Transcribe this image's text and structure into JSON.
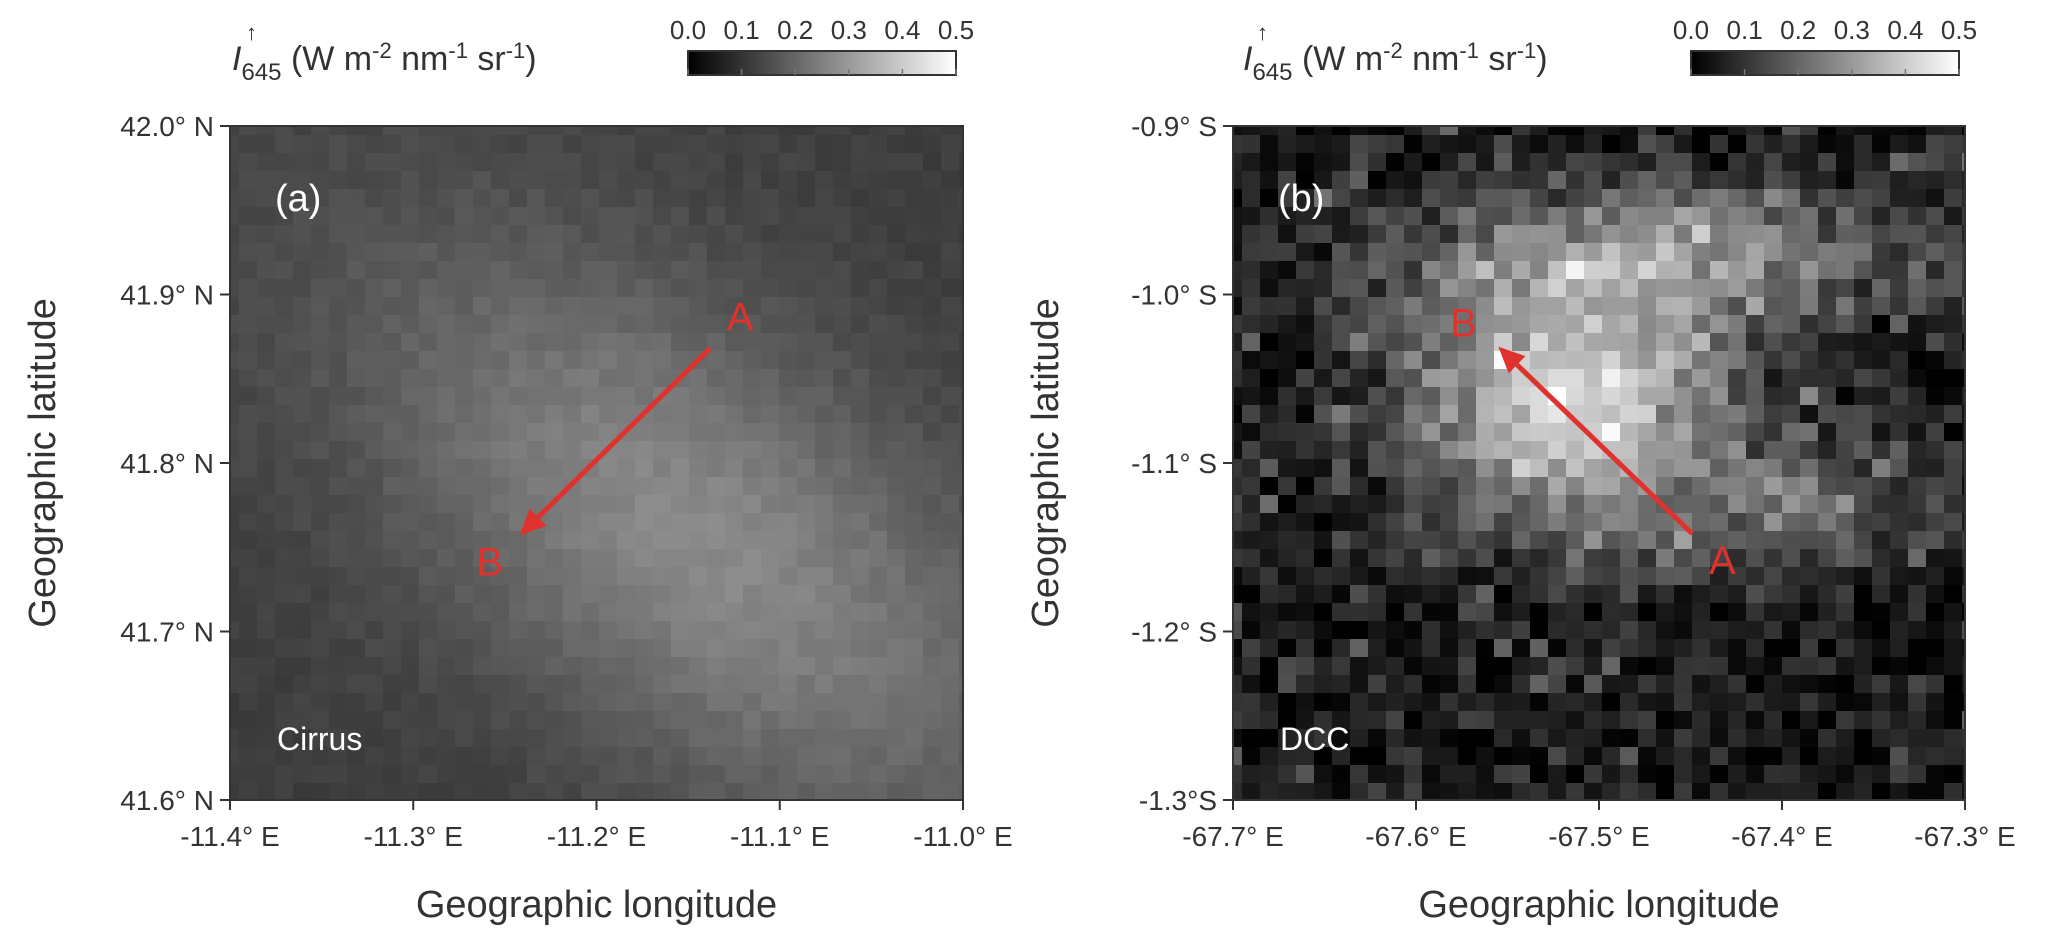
{
  "chart_data": [
    {
      "type": "heatmap",
      "panel_label": "(a)",
      "scene_label": "Cirrus",
      "colorbar": {
        "quantity": "I",
        "superscript": "↑",
        "subscript": "645",
        "units_prefix": " (W m",
        "units_exp1": "-2",
        "units_mid1": " nm",
        "units_exp2": "-1",
        "units_mid2": " sr",
        "units_exp3": "-1",
        "units_suffix": ")",
        "range": [
          0,
          0.5
        ],
        "ticks": [
          0.0,
          0.1,
          0.2,
          0.3,
          0.4,
          0.5
        ],
        "tick_labels": [
          "0.0",
          "0.1",
          "0.2",
          "0.3",
          "0.4",
          "0.5"
        ],
        "colormap": "gray"
      },
      "xlabel": "Geographic longitude",
      "ylabel": "Geographic latitude",
      "xlim": [
        -11.4,
        -11.0
      ],
      "ylim": [
        41.6,
        42.0
      ],
      "x_ticks": [
        -11.4,
        -11.3,
        -11.2,
        -11.1,
        -11.0
      ],
      "x_tick_labels": [
        "-11.4° E",
        "-11.3° E",
        "-11.2° E",
        "-11.1° E",
        "-11.0° E"
      ],
      "y_ticks": [
        41.6,
        41.7,
        41.8,
        41.9,
        42.0
      ],
      "y_tick_labels": [
        "41.6° N",
        "41.7° N",
        "41.8° N",
        "41.9° N",
        "42.0° N"
      ],
      "transect": {
        "start_label": "A",
        "end_label": "B",
        "start": [
          -11.138,
          41.868
        ],
        "end": [
          -11.242,
          41.757
        ],
        "color": "#e0322d"
      },
      "field": {
        "kind": "cirrus",
        "center": [
          -11.15,
          41.76
        ],
        "peak": 0.27,
        "background": 0.12
      }
    },
    {
      "type": "heatmap",
      "panel_label": "(b)",
      "scene_label": "DCC",
      "colorbar": {
        "quantity": "I",
        "superscript": "↑",
        "subscript": "645",
        "units_prefix": " (W m",
        "units_exp1": "-2",
        "units_mid1": " nm",
        "units_exp2": "-1",
        "units_mid2": " sr",
        "units_exp3": "-1",
        "units_suffix": ")",
        "range": [
          0,
          0.5
        ],
        "ticks": [
          0.0,
          0.1,
          0.2,
          0.3,
          0.4,
          0.5
        ],
        "tick_labels": [
          "0.0",
          "0.1",
          "0.2",
          "0.3",
          "0.4",
          "0.5"
        ],
        "colormap": "gray"
      },
      "xlabel": "Geographic longitude",
      "ylabel": "Geographic latitude",
      "xlim": [
        -67.7,
        -67.3
      ],
      "ylim": [
        -1.3,
        -0.9
      ],
      "x_ticks": [
        -67.7,
        -67.6,
        -67.5,
        -67.4,
        -67.3
      ],
      "x_tick_labels": [
        "-67.7° E",
        "-67.6° E",
        "-67.5° E",
        "-67.4° E",
        "-67.3° E"
      ],
      "y_ticks": [
        -1.3,
        -1.2,
        -1.1,
        -1.0,
        -0.9
      ],
      "y_tick_labels": [
        "-1.3°S",
        "-1.2° S",
        "-1.1° S",
        "-1.0° S",
        "-0.9° S"
      ],
      "transect": {
        "start_label": "A",
        "end_label": "B",
        "start": [
          -67.449,
          -1.142
        ],
        "end": [
          -67.555,
          -1.031
        ],
        "color": "#e0322d"
      },
      "field": {
        "kind": "dcc",
        "center": [
          -67.52,
          -1.06
        ],
        "peak": 0.36,
        "background": 0.05
      }
    }
  ]
}
